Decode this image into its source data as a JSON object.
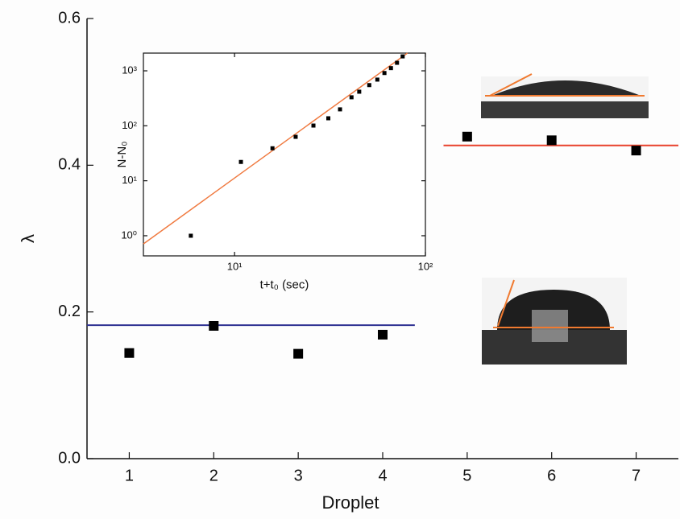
{
  "chart_data": [
    {
      "type": "scatter",
      "xlabel": "Droplet",
      "ylabel": "λ",
      "xlim": [
        0.5,
        7.5
      ],
      "ylim": [
        0,
        0.6
      ],
      "xticks": [
        1,
        2,
        3,
        4,
        5,
        6,
        7
      ],
      "yticks": [
        {
          "value": 0,
          "label": "0.0"
        },
        0.2,
        0.4,
        0.6
      ],
      "series": [
        {
          "color": "#000000",
          "x": [
            1,
            2,
            3,
            4,
            5,
            6,
            7
          ],
          "values": [
            0.144,
            0.181,
            0.143,
            0.169,
            0.439,
            0.434,
            0.42
          ]
        }
      ],
      "lines": [
        {
          "color": "#2e3192",
          "x": [
            0.5,
            4.38
          ],
          "values": [
            0.182,
            0.182
          ]
        },
        {
          "color": "#e8412c",
          "x": [
            4.72,
            7.5
          ],
          "values": [
            0.427,
            0.427
          ]
        }
      ]
    },
    {
      "type": "scatter",
      "xscale": "log",
      "yscale": "log",
      "xlabel": "t+t₀ (sec)",
      "ylabel": "N-N₀",
      "xlim": [
        3.33,
        100
      ],
      "ylim": [
        0.43,
        2100
      ],
      "xticks": [
        {
          "value": 10,
          "label": "10¹"
        },
        {
          "value": 100,
          "label": "10²"
        }
      ],
      "yticks": [
        {
          "value": 1,
          "label": "10⁰"
        },
        {
          "value": 10,
          "label": "10¹"
        },
        {
          "value": 100,
          "label": "10²"
        },
        {
          "value": 1000,
          "label": "10³"
        }
      ],
      "series": [
        {
          "color": "#000000",
          "x": [
            5.9,
            10.8,
            15.8,
            20.9,
            25.9,
            31,
            35.7,
            41,
            45,
            50.8,
            56,
            61,
            66,
            71,
            76
          ],
          "values": [
            1,
            22,
            39,
            63,
            101,
            137,
            199,
            330,
            417,
            550,
            692,
            912,
            1120,
            1400,
            1830
          ]
        }
      ],
      "lines": [
        {
          "color": "#f07a40",
          "x": [
            3.33,
            80.5
          ],
          "values": [
            0.71,
            2100
          ]
        }
      ]
    }
  ]
}
